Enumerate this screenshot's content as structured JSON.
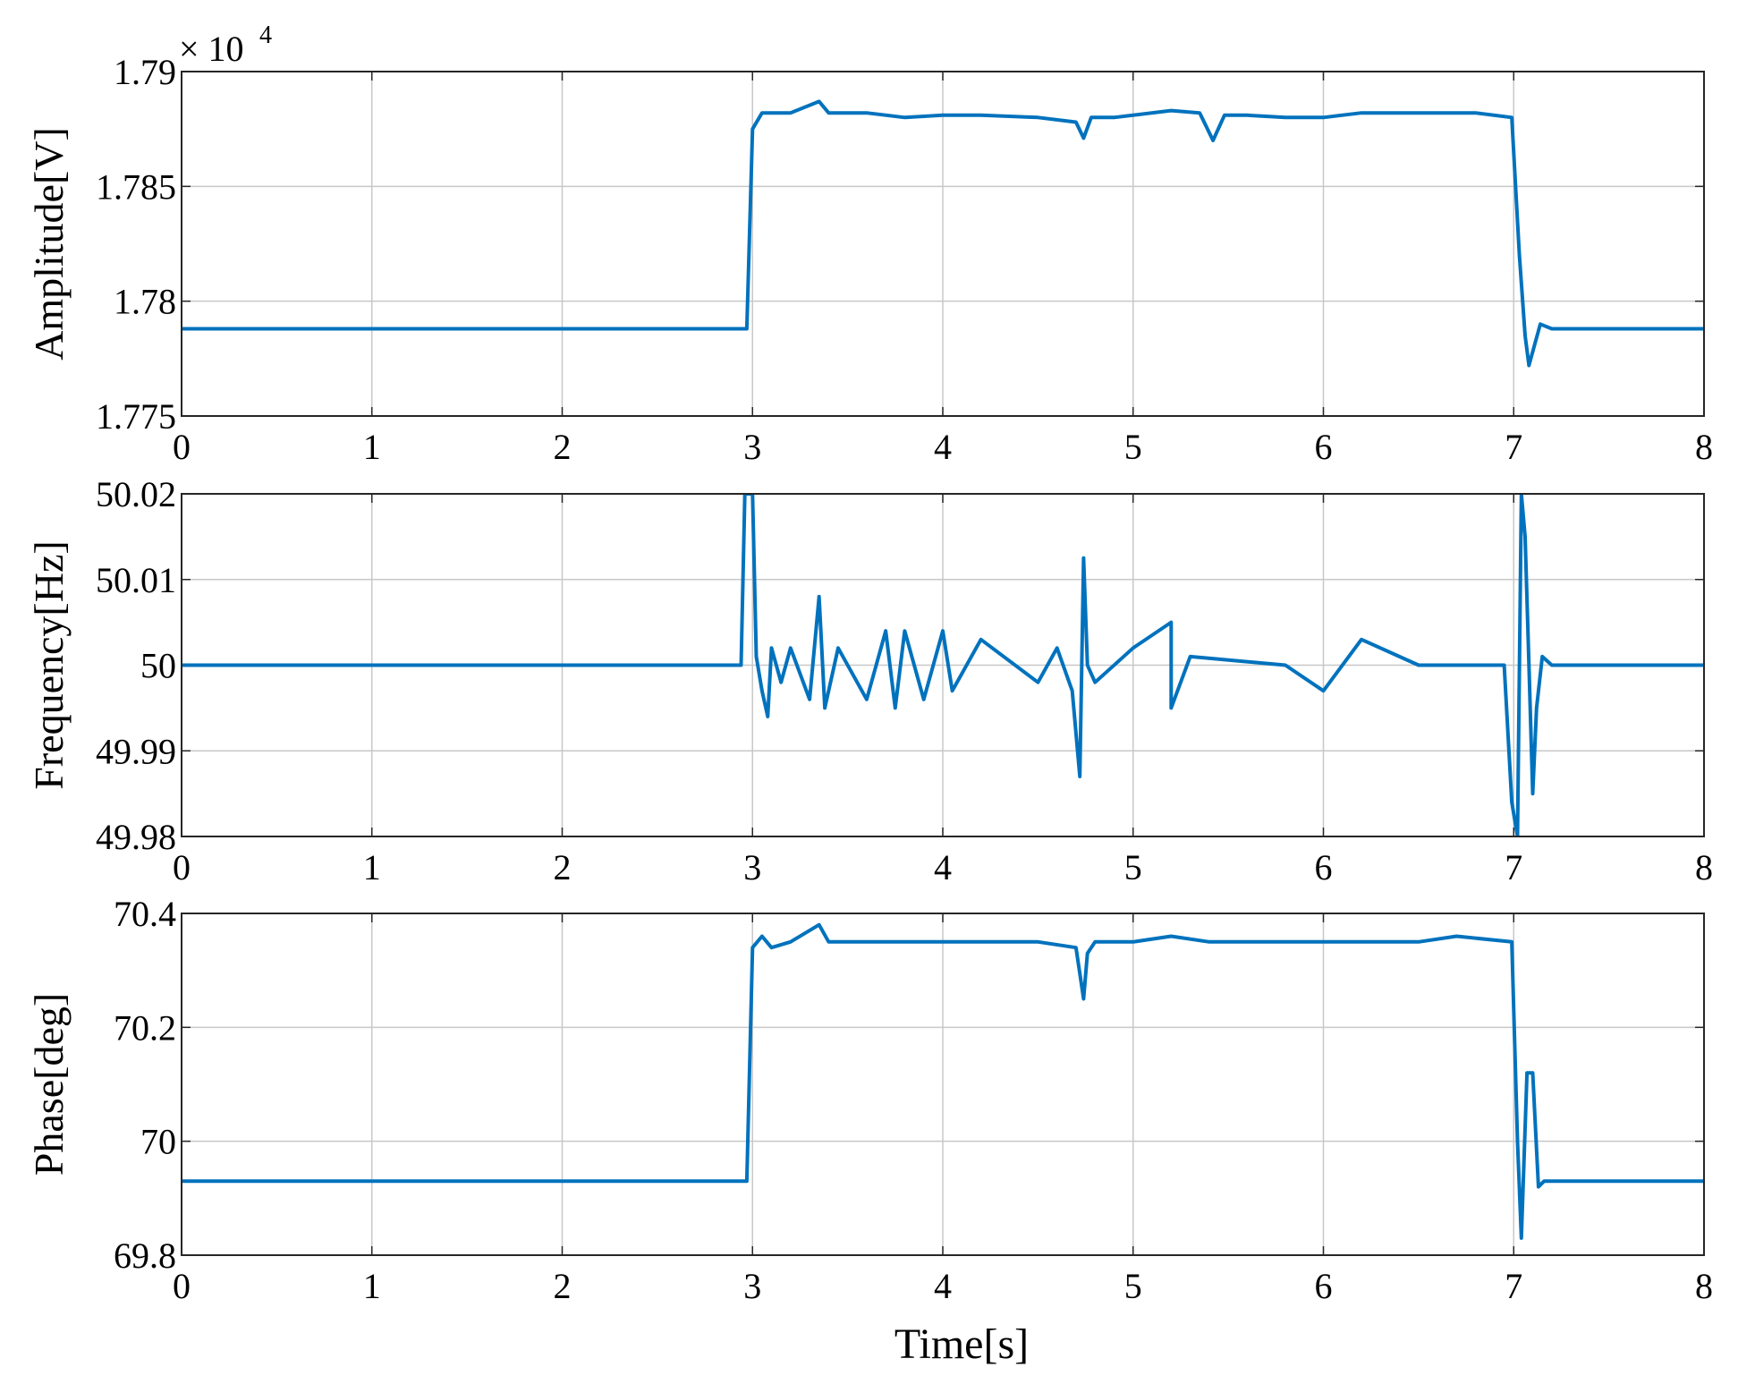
{
  "figure": {
    "xlabel": "Time[s]",
    "line_color": "#0072BD",
    "grid": true
  },
  "chart_data": [
    {
      "type": "line",
      "ylabel": "Amplitude[V]",
      "scale_label": "× 10",
      "scale_exponent": "4",
      "xlim": [
        0,
        8
      ],
      "ylim": [
        1.775,
        1.79
      ],
      "xticks": [
        0,
        1,
        2,
        3,
        4,
        5,
        6,
        7,
        8
      ],
      "yticks": [
        1.775,
        1.78,
        1.785,
        1.79
      ],
      "ytick_labels": [
        "1.775",
        "1.78",
        "1.785",
        "1.79"
      ],
      "series": [
        {
          "x": [
            0,
            0.5,
            1,
            1.5,
            2,
            2.5,
            2.95,
            2.97,
            3.0,
            3.05,
            3.2,
            3.35,
            3.4,
            3.6,
            3.8,
            4.0,
            4.2,
            4.5,
            4.7,
            4.74,
            4.78,
            4.9,
            5.2,
            5.35,
            5.42,
            5.48,
            5.6,
            5.8,
            6.0,
            6.2,
            6.5,
            6.8,
            6.99,
            7.03,
            7.06,
            7.08,
            7.1,
            7.14,
            7.2,
            7.5,
            8.0
          ],
          "y": [
            1.7788,
            1.7788,
            1.7788,
            1.7788,
            1.7788,
            1.7788,
            1.7788,
            1.7788,
            1.7875,
            1.7882,
            1.7882,
            1.7887,
            1.7882,
            1.7882,
            1.788,
            1.7881,
            1.7881,
            1.788,
            1.7878,
            1.7871,
            1.788,
            1.788,
            1.7883,
            1.7882,
            1.787,
            1.7881,
            1.7881,
            1.788,
            1.788,
            1.7882,
            1.7882,
            1.7882,
            1.788,
            1.782,
            1.7785,
            1.7772,
            1.7778,
            1.779,
            1.7788,
            1.7788,
            1.7788
          ]
        }
      ]
    },
    {
      "type": "line",
      "ylabel": "Frequency[Hz]",
      "xlim": [
        0,
        8
      ],
      "ylim": [
        49.98,
        50.02
      ],
      "xticks": [
        0,
        1,
        2,
        3,
        4,
        5,
        6,
        7,
        8
      ],
      "yticks": [
        49.98,
        49.99,
        50,
        50.01,
        50.02
      ],
      "ytick_labels": [
        "49.98",
        "49.99",
        "50",
        "50.01",
        "50.02"
      ],
      "series": [
        {
          "x": [
            0,
            0.5,
            1,
            1.5,
            2,
            2.5,
            2.9,
            2.94,
            2.96,
            2.98,
            3.0,
            3.02,
            3.05,
            3.08,
            3.1,
            3.15,
            3.2,
            3.3,
            3.35,
            3.38,
            3.45,
            3.6,
            3.7,
            3.75,
            3.8,
            3.9,
            4.0,
            4.05,
            4.2,
            4.5,
            4.6,
            4.68,
            4.72,
            4.74,
            4.76,
            4.8,
            5.0,
            5.2,
            5.2,
            5.3,
            5.8,
            6.0,
            6.2,
            6.5,
            6.8,
            6.95,
            6.99,
            7.02,
            7.04,
            7.06,
            7.08,
            7.1,
            7.12,
            7.15,
            7.2,
            7.5,
            8.0
          ],
          "y": [
            50.0,
            50.0,
            50.0,
            50.0,
            50.0,
            50.0,
            50.0,
            50.0,
            50.02,
            50.02,
            50.02,
            50.001,
            49.997,
            49.994,
            50.002,
            49.998,
            50.002,
            49.996,
            50.008,
            49.995,
            50.002,
            49.996,
            50.004,
            49.995,
            50.004,
            49.996,
            50.004,
            49.997,
            50.003,
            49.998,
            50.002,
            49.997,
            49.987,
            50.0125,
            50.0,
            49.998,
            50.002,
            50.005,
            49.995,
            50.001,
            50.0,
            49.997,
            50.003,
            50.0,
            50.0,
            50.0,
            49.984,
            49.98,
            50.02,
            50.015,
            50.0,
            49.985,
            49.995,
            50.001,
            50.0,
            50.0,
            50.0
          ]
        }
      ]
    },
    {
      "type": "line",
      "ylabel": "Phase[deg]",
      "xlim": [
        0,
        8
      ],
      "ylim": [
        69.8,
        70.4
      ],
      "xticks": [
        0,
        1,
        2,
        3,
        4,
        5,
        6,
        7,
        8
      ],
      "yticks": [
        69.8,
        70.0,
        70.2,
        70.4
      ],
      "ytick_labels": [
        "69.8",
        "70",
        "70.2",
        "70.4"
      ],
      "series": [
        {
          "x": [
            0,
            0.5,
            1,
            1.5,
            2,
            2.5,
            2.95,
            2.97,
            3.0,
            3.05,
            3.1,
            3.2,
            3.35,
            3.4,
            3.6,
            3.8,
            4.0,
            4.2,
            4.5,
            4.7,
            4.74,
            4.76,
            4.8,
            5.0,
            5.2,
            5.4,
            5.8,
            6.0,
            6.2,
            6.5,
            6.7,
            6.99,
            7.02,
            7.04,
            7.07,
            7.1,
            7.13,
            7.16,
            7.2,
            7.5,
            8.0
          ],
          "y": [
            69.93,
            69.93,
            69.93,
            69.93,
            69.93,
            69.93,
            69.93,
            69.93,
            70.34,
            70.36,
            70.34,
            70.35,
            70.38,
            70.35,
            70.35,
            70.35,
            70.35,
            70.35,
            70.35,
            70.34,
            70.25,
            70.33,
            70.35,
            70.35,
            70.36,
            70.35,
            70.35,
            70.35,
            70.35,
            70.35,
            70.36,
            70.35,
            70.0,
            69.83,
            70.12,
            70.12,
            69.92,
            69.93,
            69.93,
            69.93,
            69.93
          ]
        }
      ]
    }
  ]
}
